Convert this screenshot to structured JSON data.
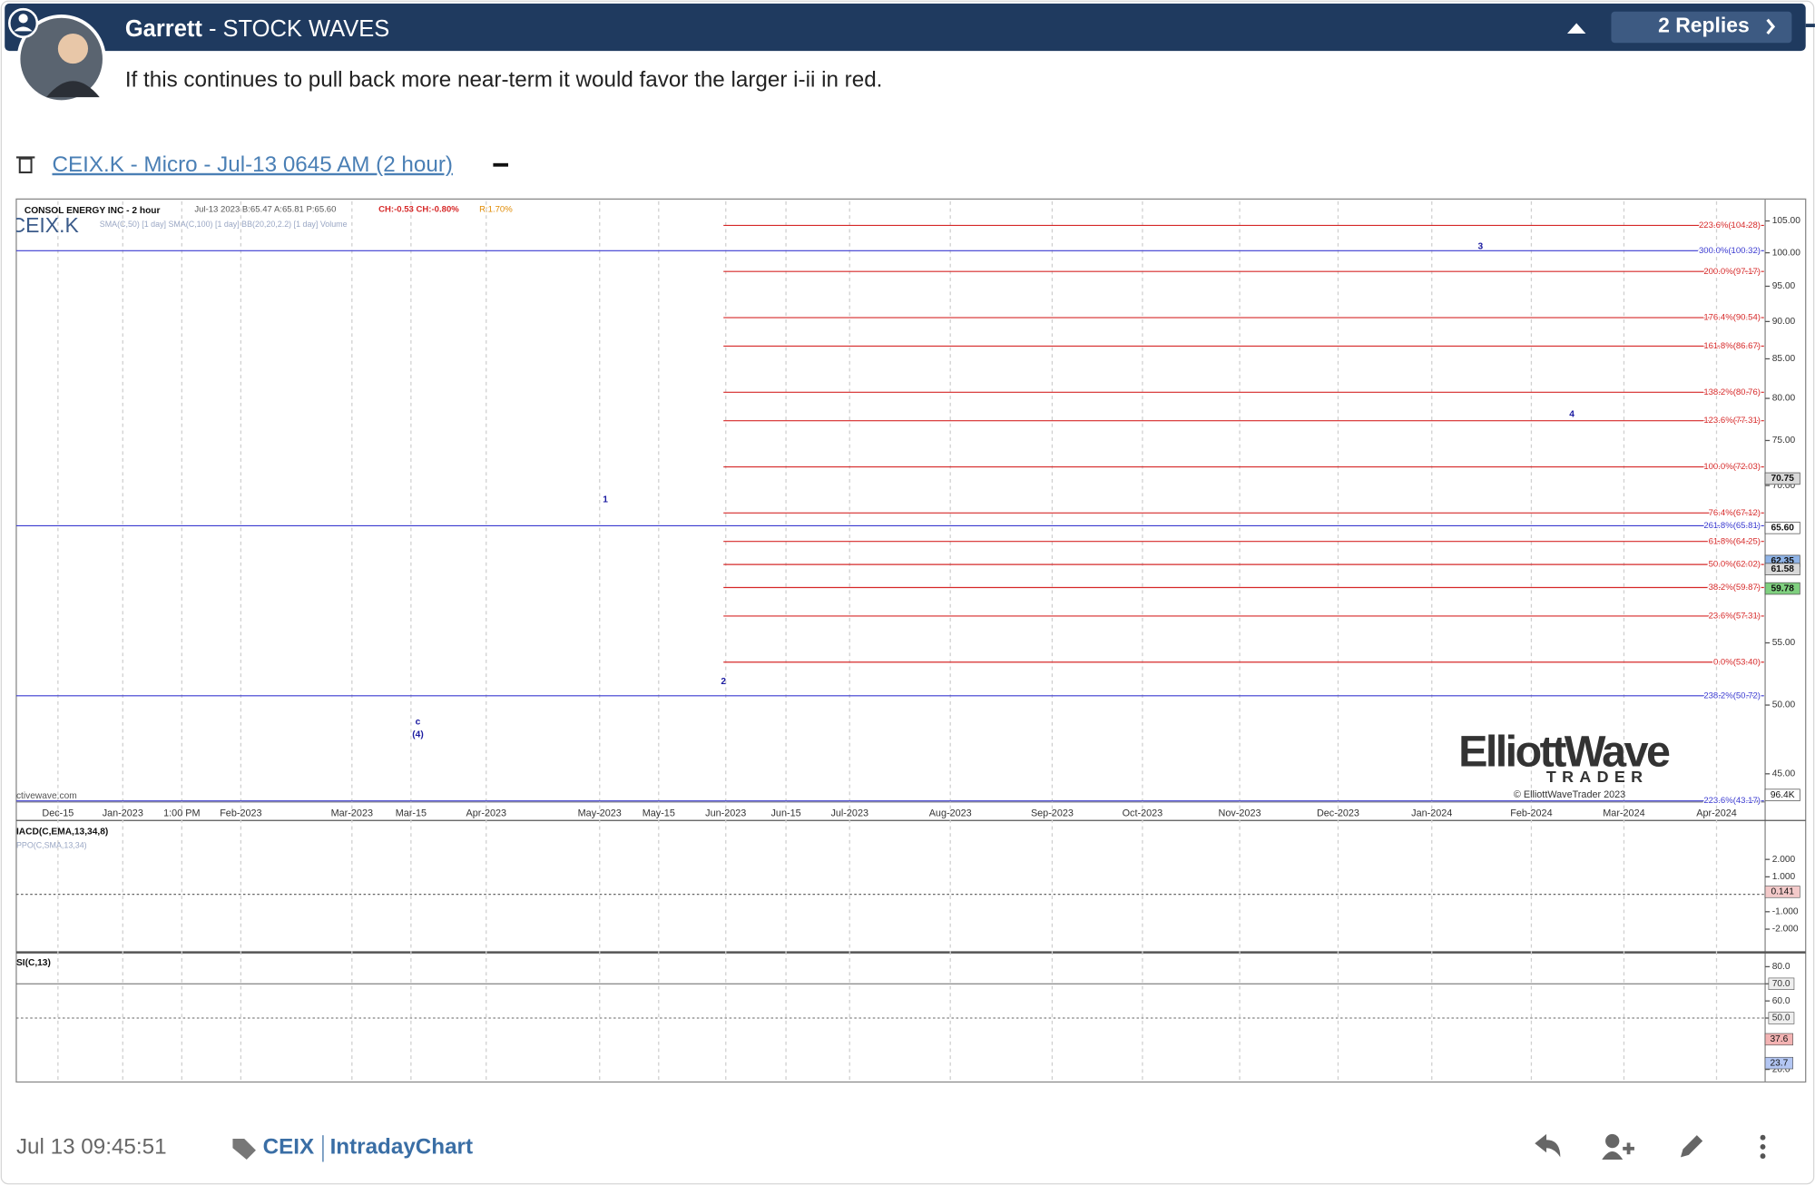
{
  "post": {
    "header": {
      "author": "Garrett",
      "separator": "-",
      "forum": "STOCK WAVES",
      "replies": "2 Replies"
    },
    "body": "If this continues to pull back more near-term it would favor the larger i-ii in red.",
    "chart_link": "CEIX.K - Micro - Jul-13 0645 AM (2 hour)",
    "footer": {
      "timestamp": "Jul 13 09:45:51",
      "tags": [
        "CEIX",
        "IntradayChart"
      ]
    }
  },
  "chart": {
    "company": "CONSOL ENERGY INC - 2 hour",
    "quote": "Jul-13 2023 B:65.47 A:65.81 P:65.60",
    "change": "CH:-0.53 CH:-0.80%",
    "range": "R:1.70%",
    "ticker": "CEIX.K",
    "indicators": "SMA(C,50) [1 day]  SMA(C,100) [1 day]  BB(20,20,2.2) [1 day]  Volume",
    "source": "ctivewave.com",
    "log_scale": true,
    "ylim": [
      43.1,
      108.2
    ],
    "yticks": [
      {
        "value": 105,
        "label": "105.00"
      },
      {
        "value": 100,
        "label": "100.00"
      },
      {
        "value": 95,
        "label": "95.00"
      },
      {
        "value": 90,
        "label": "90.00"
      },
      {
        "value": 85,
        "label": "85.00"
      },
      {
        "value": 80,
        "label": "80.00"
      },
      {
        "value": 75,
        "label": "75.00"
      },
      {
        "value": 70,
        "label": "70.00"
      },
      {
        "value": 55,
        "label": "55.00"
      },
      {
        "value": 50,
        "label": "50.00"
      },
      {
        "value": 45,
        "label": "45.00"
      }
    ],
    "levels": [
      {
        "value": 104.28,
        "label": "223.6%(104.28)",
        "color": "#d62828"
      },
      {
        "value": 100.32,
        "label": "300.0%(100.32)",
        "color": "#3a3ad0"
      },
      {
        "value": 97.17,
        "label": "200.0%(97.17)",
        "color": "#d62828"
      },
      {
        "value": 90.54,
        "label": "176.4%(90.54)",
        "color": "#d62828"
      },
      {
        "value": 86.67,
        "label": "161.8%(86.67)",
        "color": "#d62828"
      },
      {
        "value": 80.76,
        "label": "138.2%(80.76)",
        "color": "#d62828"
      },
      {
        "value": 77.31,
        "label": "123.6%(77.31)",
        "color": "#d62828"
      },
      {
        "value": 72.03,
        "label": "100.0%(72.03)",
        "color": "#d62828"
      },
      {
        "value": 67.12,
        "label": "76.4%(67.12)",
        "color": "#d62828"
      },
      {
        "value": 65.81,
        "label": "261.8%(65.81)",
        "color": "#3a3ad0"
      },
      {
        "value": 64.25,
        "label": "61.8%(64.25)",
        "color": "#d62828"
      },
      {
        "value": 62.02,
        "label": "50.0%(62.02)",
        "color": "#d62828"
      },
      {
        "value": 59.87,
        "label": "38.2%(59.87)",
        "color": "#d62828"
      },
      {
        "value": 57.31,
        "label": "23.6%(57.31)",
        "color": "#d62828"
      },
      {
        "value": 53.4,
        "label": "0.0%(53.40)",
        "color": "#d62828"
      },
      {
        "value": 50.72,
        "label": "238.2%(50.72)",
        "color": "#3a3ad0"
      },
      {
        "value": 43.17,
        "label": "223.6%(43.17)",
        "color": "#3a3ad0"
      }
    ],
    "price_tags": [
      70.75,
      {
        "value": 65.6,
        "label": "65.60"
      },
      62.35,
      61.58,
      59.78
    ],
    "price_tag_colors": [
      "#d9d9d9",
      "#ffffff",
      "#8fb4e8",
      "#d9d9d9",
      "#7fd07f"
    ],
    "volume_tag": "96.4K",
    "x_labels": [
      "Dec-15",
      "Jan-2023",
      "1:00 PM",
      "Feb-2023",
      "Mar-2023",
      "Mar-15",
      "Apr-2023",
      "May-2023",
      "May-15",
      "Jun-2023",
      "Jun-15",
      "Jul-2023",
      "Aug-2023",
      "Sep-2023",
      "Oct-2023",
      "Nov-2023",
      "Dec-2023",
      "Jan-2024",
      "Feb-2024",
      "Mar-2024",
      "Apr-2024"
    ],
    "wave_labels": [
      "1",
      "2",
      "3",
      "4",
      "c",
      "(4)"
    ],
    "watermark": "ElliottWave",
    "watermark_sub": "TRADER",
    "copyright": "© ElliottWaveTrader 2023",
    "macd": {
      "title": "IACD(C,EMA,13,34,8)",
      "subtitle": "PPO(C,SMA,13,34)",
      "ylim": [
        -3.2,
        4.1
      ],
      "yticks": [
        {
          "value": 2,
          "label": "2.000"
        },
        {
          "value": 1,
          "label": "1.000"
        },
        {
          "value": -1,
          "label": "-1.000"
        },
        {
          "value": -2,
          "label": "-2.000"
        }
      ],
      "tag": 0.141
    },
    "rsi": {
      "title": "SI(C,13)",
      "ylim": [
        14,
        87
      ],
      "yticks": [
        {
          "value": 80,
          "label": "80.0"
        },
        {
          "value": 70,
          "label": "70.0"
        },
        {
          "value": 60,
          "label": "60.0"
        },
        {
          "value": 50,
          "label": "50.0"
        },
        {
          "value": 20,
          "label": "20.0"
        }
      ],
      "tags": [
        37.6,
        23.7
      ]
    }
  }
}
